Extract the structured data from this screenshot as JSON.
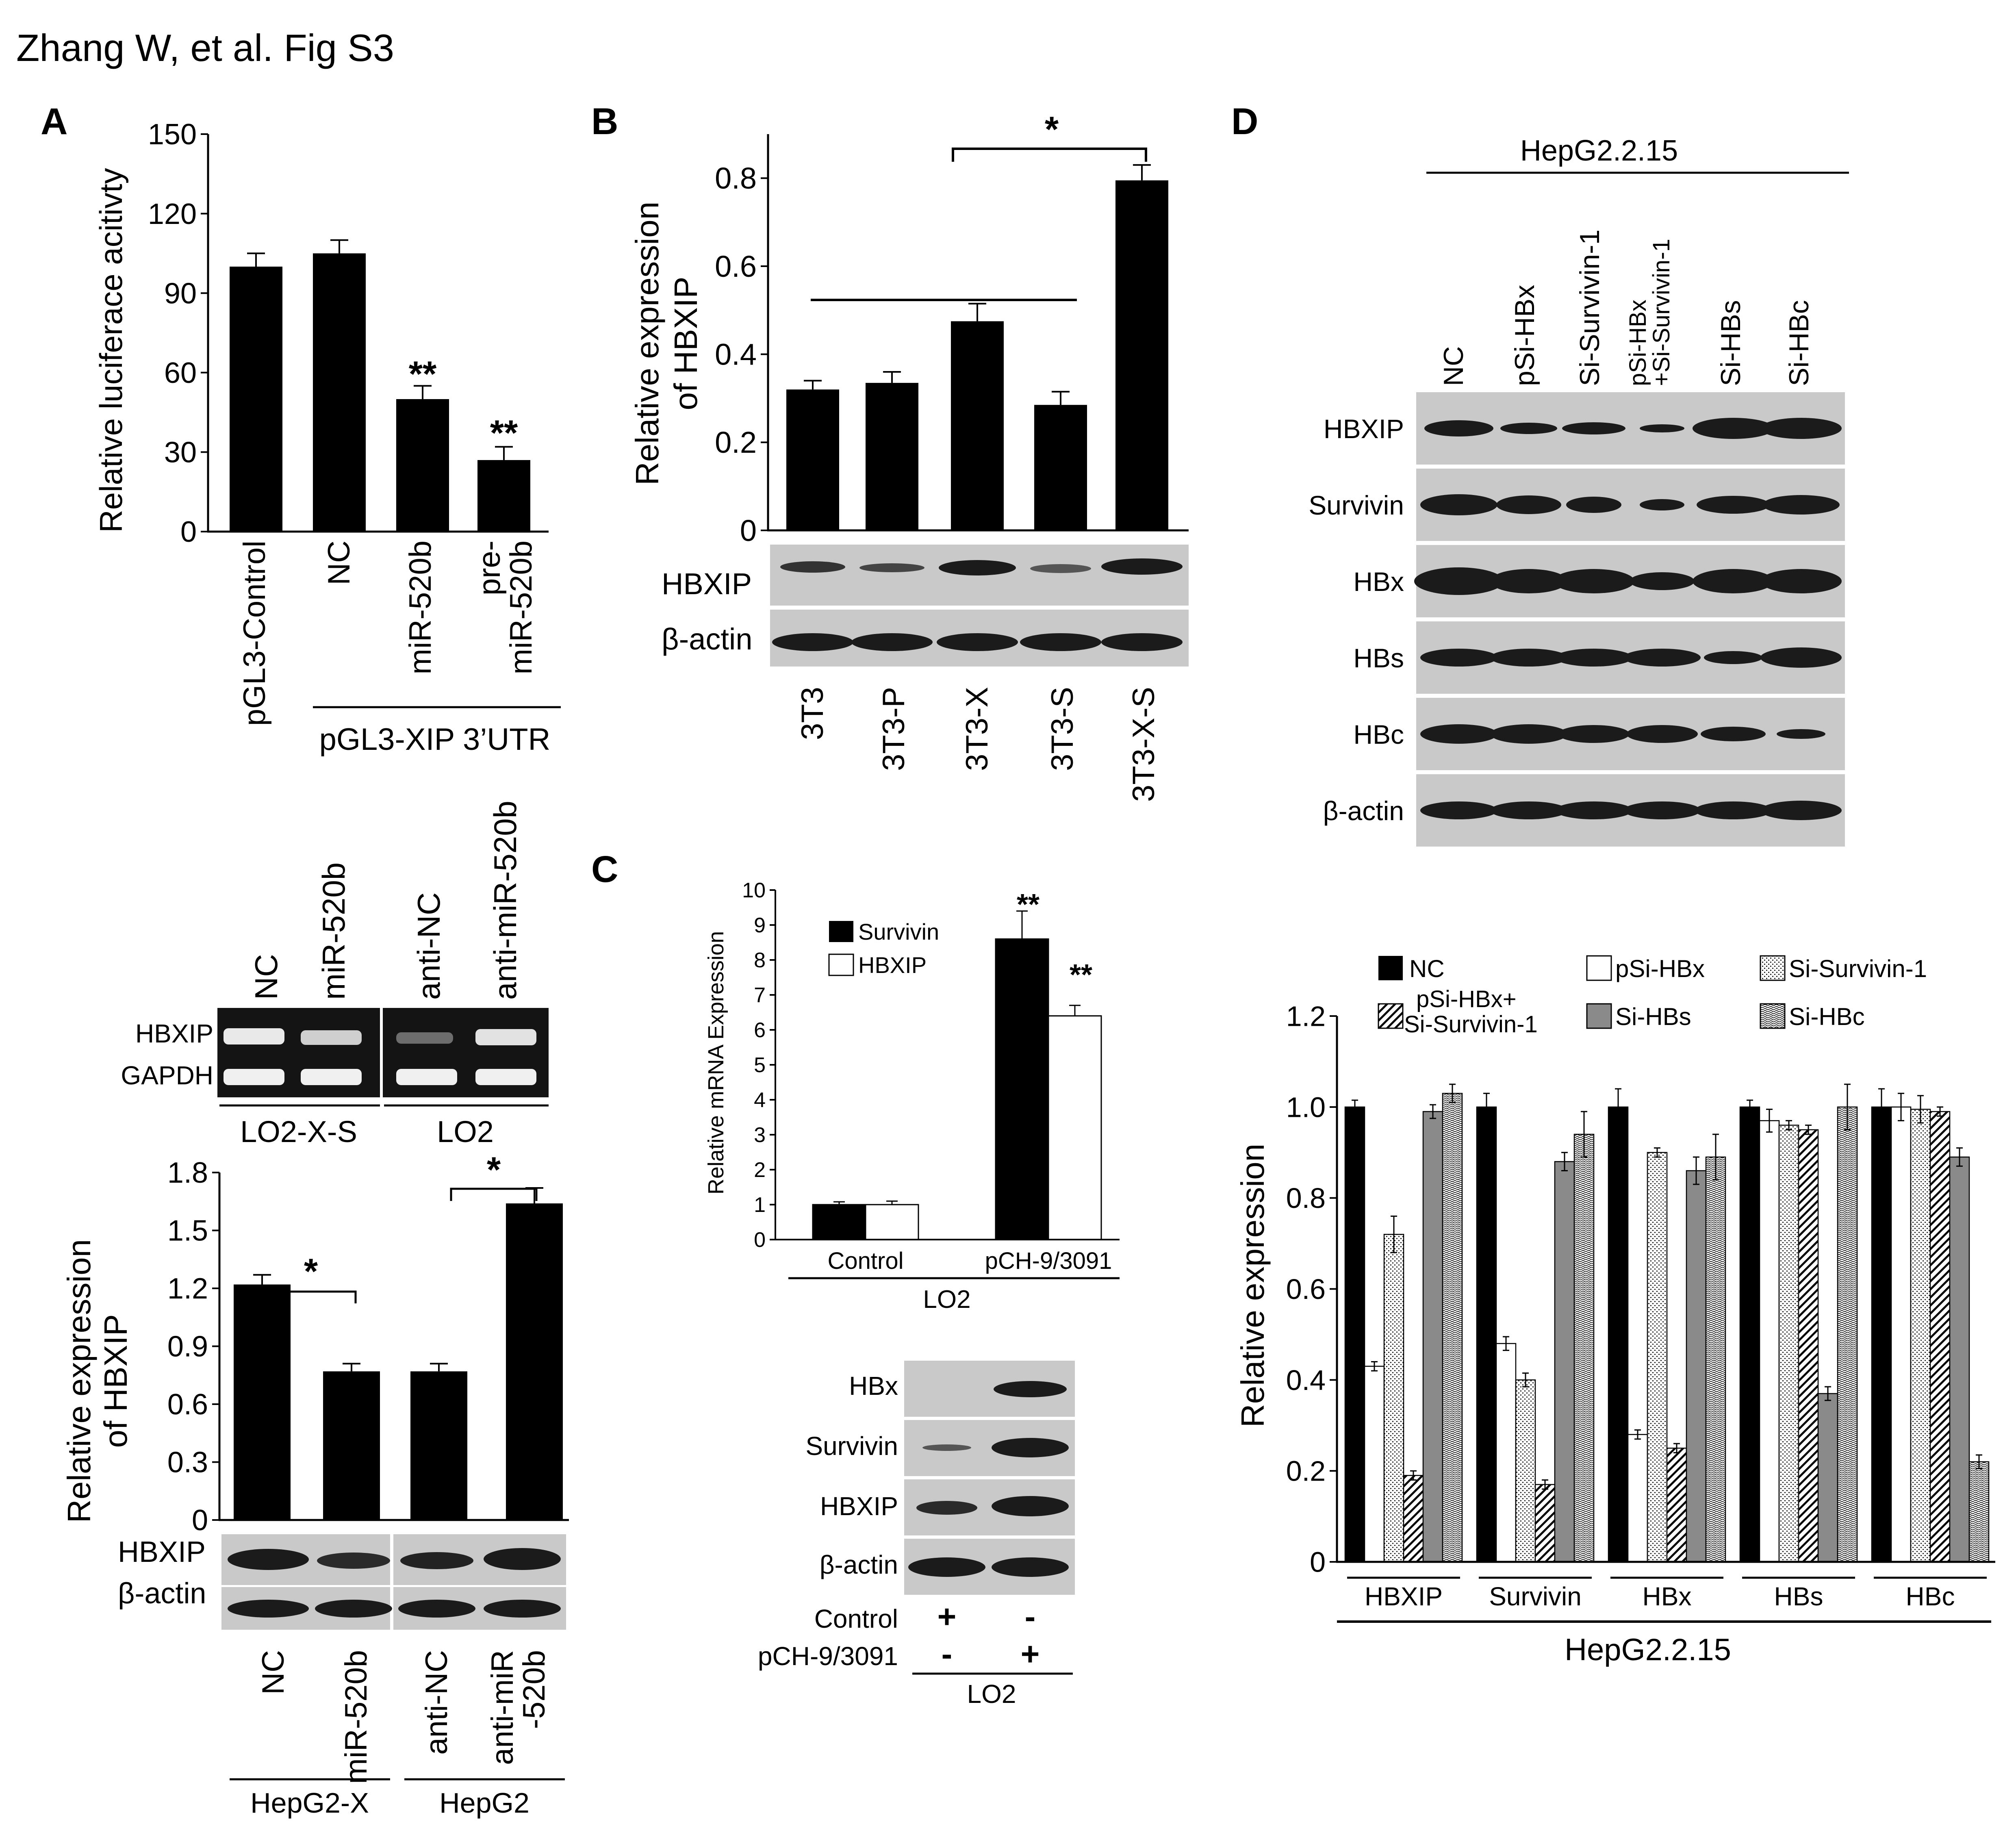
{
  "figure_title": "Zhang W, et al. Fig S3",
  "colors": {
    "bar_black": "#000000",
    "bar_white": "#ffffff",
    "bar_gray": "#8a8a8a",
    "blot_bg": "#c9c9c9",
    "blot_band": "#1b1b1b"
  },
  "panels": {
    "A": {
      "letter": "A",
      "luciferase_chart": {
        "ylabel": "Relative luciferace acitivty",
        "categories": [
          "pGL3-Control",
          "NC",
          "miR-520b",
          "pre-miR-520b"
        ],
        "group_label": "pGL3-XIP 3’UTR",
        "sig": [
          "",
          "",
          "**",
          "**"
        ]
      },
      "rtpcr_blot": {
        "lanes": [
          "NC",
          "miR-520b",
          "anti-NC",
          "anti-miR-520b"
        ],
        "rows": [
          "HBXIP",
          "GAPDH"
        ],
        "groups": [
          "LO2-X-S",
          "LO2"
        ]
      },
      "hbxip_chart": {
        "ylabel_line1": "Relative expression",
        "ylabel_line2": "of HBXIP",
        "categories": [
          "NC",
          "miR-520b",
          "anti-NC",
          "anti-miR-520b"
        ],
        "lane_labels": [
          "NC",
          "miR-520b",
          "anti-NC",
          "anti-miR",
          "-520b"
        ],
        "star": "*",
        "blot_rows": [
          "HBXIP",
          "β-actin"
        ],
        "groups": [
          "HepG2-X",
          "HepG2"
        ]
      }
    },
    "B": {
      "letter": "B",
      "ylabel_line1": "Relative expression",
      "ylabel_line2": "of HBXIP",
      "categories": [
        "3T3",
        "3T3-P",
        "3T3-X",
        "3T3-S",
        "3T3-X-S"
      ],
      "star": "*",
      "blot_rows": [
        "HBXIP",
        "β-actin"
      ]
    },
    "C": {
      "letter": "C",
      "ylabel": "Relative mRNA Expression",
      "legend": [
        "Survivin",
        "HBXIP"
      ],
      "categories": [
        "Control",
        "pCH-9/3091"
      ],
      "group_label": "LO2",
      "sig": "**",
      "blot_rows": [
        "HBx",
        "Survivin",
        "HBXIP",
        "β-actin"
      ],
      "treatment_rows": [
        {
          "label": "Control",
          "marks": [
            "+",
            "-"
          ]
        },
        {
          "label": "pCH-9/3091",
          "marks": [
            "-",
            "+"
          ]
        }
      ],
      "blot_group": "LO2"
    },
    "D": {
      "letter": "D",
      "cell_line": "HepG2.2.15",
      "lanes": [
        "NC",
        "pSi-HBx",
        "Si-Survivin-1",
        "pSi-HBx",
        "+Si-Survivin-1",
        "Si-HBs",
        "Si-HBc"
      ],
      "blot_rows": [
        "HBXIP",
        "Survivin",
        "HBx",
        "HBs",
        "HBc",
        "β-actin"
      ],
      "legend": [
        "NC",
        "pSi-HBx",
        "Si-Survivin-1",
        "pSi-HBx+",
        "Si-Survivin-1",
        "Si-HBs",
        "Si-HBc"
      ],
      "ylabel": "Relative expression",
      "group_label": "HepG2.2.15"
    }
  },
  "chart_data": [
    {
      "id": "A-luciferase",
      "type": "bar",
      "categories": [
        "pGL3-Control",
        "NC",
        "miR-520b",
        "pre-miR-520b"
      ],
      "values": [
        100,
        105,
        50,
        27
      ],
      "errors": [
        5,
        5,
        5,
        5
      ],
      "ylabel": "Relative luciferace acitivty",
      "ylim": [
        0,
        150
      ],
      "yticks": [
        0,
        30,
        60,
        90,
        120,
        150
      ],
      "tick_labels": [
        "0",
        "30",
        "60",
        "90",
        "120",
        "150"
      ]
    },
    {
      "id": "A-hbxip",
      "type": "bar",
      "categories": [
        "NC",
        "miR-520b",
        "anti-NC",
        "anti-miR-520b"
      ],
      "values": [
        1.22,
        0.77,
        0.77,
        1.64
      ],
      "errors": [
        0.05,
        0.04,
        0.04,
        0.08
      ],
      "ylabel": "Relative expression of HBXIP",
      "ylim": [
        0,
        1.8
      ],
      "yticks": [
        0,
        0.3,
        0.6,
        0.9,
        1.2,
        1.5,
        1.8
      ],
      "tick_labels": [
        "0",
        "0.3",
        "0.6",
        "0.9",
        "1.2",
        "1.5",
        "1.8"
      ]
    },
    {
      "id": "B",
      "type": "bar",
      "categories": [
        "3T3",
        "3T3-P",
        "3T3-X",
        "3T3-S",
        "3T3-X-S"
      ],
      "values": [
        0.32,
        0.335,
        0.475,
        0.285,
        0.795
      ],
      "errors": [
        0.02,
        0.025,
        0.04,
        0.03,
        0.035
      ],
      "ylabel": "Relative expression of HBXIP",
      "ylim": [
        0,
        0.9
      ],
      "yticks": [
        0,
        0.2,
        0.4,
        0.6,
        0.8
      ],
      "tick_labels": [
        "0",
        "0.2",
        "0.4",
        "0.6",
        "0.8"
      ]
    },
    {
      "id": "C",
      "type": "bar",
      "categories": [
        "Control",
        "pCH-9/3091"
      ],
      "series": [
        {
          "name": "Survivin",
          "values": [
            1.0,
            8.6
          ],
          "errors": [
            0.08,
            0.8
          ]
        },
        {
          "name": "HBXIP",
          "values": [
            1.0,
            6.4
          ],
          "errors": [
            0.1,
            0.3
          ]
        }
      ],
      "ylabel": "Relative mRNA Expression",
      "ylim": [
        0,
        10
      ],
      "yticks": [
        0,
        1,
        2,
        3,
        4,
        5,
        6,
        7,
        8,
        9,
        10
      ],
      "tick_labels": [
        "0",
        "1",
        "2",
        "3",
        "4",
        "5",
        "6",
        "7",
        "8",
        "9",
        "10"
      ],
      "legend": "top-left"
    },
    {
      "id": "D",
      "type": "bar",
      "categories": [
        "HBXIP",
        "Survivin",
        "HBx",
        "HBs",
        "HBc"
      ],
      "series": [
        {
          "name": "NC",
          "values": [
            1.0,
            1.0,
            1.0,
            1.0,
            1.0
          ],
          "errors": [
            0.015,
            0.03,
            0.04,
            0.015,
            0.04
          ]
        },
        {
          "name": "pSi-HBx",
          "values": [
            0.43,
            0.48,
            0.28,
            0.97,
            1.0
          ],
          "errors": [
            0.01,
            0.015,
            0.01,
            0.025,
            0.03
          ]
        },
        {
          "name": "Si-Survivin-1",
          "values": [
            0.72,
            0.4,
            0.9,
            0.96,
            0.995
          ],
          "errors": [
            0.04,
            0.015,
            0.01,
            0.01,
            0.03
          ]
        },
        {
          "name": "pSi-HBx+Si-Survivin-1",
          "values": [
            0.19,
            0.17,
            0.25,
            0.95,
            0.99
          ],
          "errors": [
            0.01,
            0.01,
            0.01,
            0.01,
            0.01
          ]
        },
        {
          "name": "Si-HBs",
          "values": [
            0.99,
            0.88,
            0.86,
            0.37,
            0.89
          ],
          "errors": [
            0.015,
            0.02,
            0.03,
            0.015,
            0.02
          ]
        },
        {
          "name": "Si-HBc",
          "values": [
            1.03,
            0.94,
            0.89,
            1.0,
            0.22
          ],
          "errors": [
            0.02,
            0.05,
            0.05,
            0.05,
            0.015
          ]
        }
      ],
      "ylabel": "Relative expression",
      "ylim": [
        0,
        1.2
      ],
      "yticks": [
        0,
        0.2,
        0.4,
        0.6,
        0.8,
        1.0,
        1.2
      ],
      "tick_labels": [
        "0",
        "0.2",
        "0.4",
        "0.6",
        "0.8",
        "1.0",
        "1.2"
      ],
      "legend": "top"
    }
  ]
}
